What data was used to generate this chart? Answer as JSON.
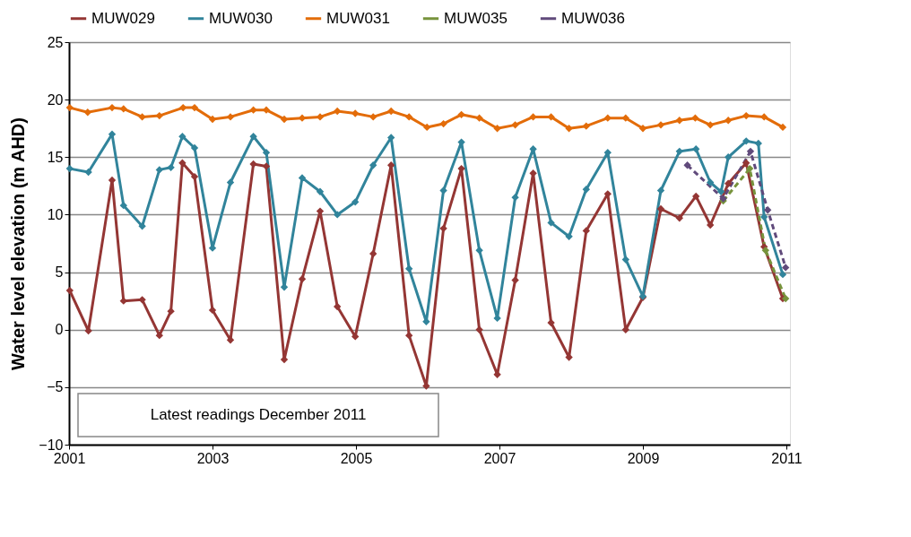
{
  "chart_data": {
    "type": "line",
    "ylabel": "Water level elevation  (m AHD)",
    "xlim": [
      2001,
      2011.05
    ],
    "xticks": [
      2001,
      2003,
      2005,
      2007,
      2009,
      2011
    ],
    "ylim": [
      -10,
      25
    ],
    "yticks": [
      -10,
      -5,
      0,
      5,
      10,
      15,
      20,
      25
    ],
    "grid": "y",
    "legend": "top",
    "marker": "diamond",
    "annotations": [
      "Latest readings December 2011"
    ],
    "series": [
      {
        "name": "MUW029",
        "color": "#943634",
        "line_style": "solid",
        "x": [
          2001.01,
          2001.27,
          2001.6,
          2001.76,
          2002.02,
          2002.26,
          2002.42,
          2002.58,
          2002.75,
          2003.0,
          2003.25,
          2003.57,
          2003.75,
          2004.0,
          2004.25,
          2004.5,
          2004.74,
          2004.99,
          2005.24,
          2005.49,
          2005.74,
          2005.98,
          2006.22,
          2006.47,
          2006.72,
          2006.97,
          2007.22,
          2007.47,
          2007.72,
          2007.97,
          2008.21,
          2008.51,
          2008.76,
          2009.0,
          2009.25,
          2009.51,
          2009.74,
          2009.94,
          2010.19,
          2010.44,
          2010.69,
          2010.95
        ],
        "values": [
          3.4,
          -0.1,
          13.0,
          2.5,
          2.6,
          -0.5,
          1.6,
          14.5,
          13.3,
          1.7,
          -0.9,
          14.4,
          14.2,
          -2.6,
          4.4,
          10.3,
          2.0,
          -0.6,
          6.6,
          14.3,
          -0.5,
          -4.9,
          8.8,
          14.0,
          0.0,
          -3.9,
          4.3,
          13.6,
          0.6,
          -2.4,
          8.6,
          11.8,
          0.0,
          2.8,
          10.5,
          9.7,
          11.6,
          9.1,
          12.7,
          14.5,
          7.2,
          2.7
        ]
      },
      {
        "name": "MUW030",
        "color": "#31849b",
        "line_style": "solid",
        "x": [
          2001.01,
          2001.27,
          2001.6,
          2001.76,
          2002.02,
          2002.26,
          2002.42,
          2002.58,
          2002.75,
          2003.0,
          2003.25,
          2003.57,
          2003.75,
          2004.0,
          2004.25,
          2004.5,
          2004.74,
          2004.99,
          2005.24,
          2005.49,
          2005.74,
          2005.98,
          2006.22,
          2006.47,
          2006.72,
          2006.97,
          2007.22,
          2007.47,
          2007.72,
          2007.97,
          2008.21,
          2008.51,
          2008.76,
          2009.0,
          2009.25,
          2009.51,
          2009.74,
          2009.94,
          2010.09,
          2010.19,
          2010.44,
          2010.61,
          2010.69,
          2010.95
        ],
        "values": [
          14.0,
          13.7,
          17.0,
          10.8,
          9.0,
          13.9,
          14.1,
          16.8,
          15.8,
          7.1,
          12.8,
          16.8,
          15.4,
          3.7,
          13.2,
          12.0,
          10.0,
          11.1,
          14.3,
          16.7,
          5.3,
          0.7,
          12.1,
          16.3,
          6.9,
          1.0,
          11.5,
          15.7,
          9.3,
          8.1,
          12.2,
          15.4,
          6.1,
          2.9,
          12.1,
          15.5,
          15.7,
          12.8,
          12.0,
          15.0,
          16.4,
          16.2,
          9.8,
          4.8
        ]
      },
      {
        "name": "MUW031",
        "color": "#e36c09",
        "line_style": "solid",
        "x": [
          2001.01,
          2001.26,
          2001.6,
          2001.76,
          2002.02,
          2002.26,
          2002.59,
          2002.75,
          2003.0,
          2003.25,
          2003.57,
          2003.75,
          2004.0,
          2004.25,
          2004.5,
          2004.74,
          2004.99,
          2005.24,
          2005.49,
          2005.74,
          2005.99,
          2006.22,
          2006.47,
          2006.72,
          2006.97,
          2007.22,
          2007.47,
          2007.72,
          2007.97,
          2008.21,
          2008.51,
          2008.76,
          2009.0,
          2009.25,
          2009.51,
          2009.73,
          2009.94,
          2010.19,
          2010.44,
          2010.69,
          2010.95
        ],
        "values": [
          19.3,
          18.9,
          19.3,
          19.2,
          18.5,
          18.6,
          19.3,
          19.3,
          18.3,
          18.5,
          19.1,
          19.1,
          18.3,
          18.4,
          18.5,
          19.0,
          18.8,
          18.5,
          19.0,
          18.5,
          17.6,
          17.9,
          18.7,
          18.4,
          17.5,
          17.8,
          18.5,
          18.5,
          17.5,
          17.7,
          18.4,
          18.4,
          17.5,
          17.8,
          18.2,
          18.4,
          17.8,
          18.2,
          18.6,
          18.5,
          17.6
        ]
      },
      {
        "name": "MUW035",
        "color": "#77933c",
        "line_style": "dashed",
        "x": [
          2010.12,
          2010.49,
          2010.71,
          2010.99
        ],
        "values": [
          11.2,
          14.0,
          6.9,
          2.7
        ]
      },
      {
        "name": "MUW036",
        "color": "#604a7b",
        "line_style": "dashed",
        "x": [
          2009.62,
          2010.12,
          2010.5,
          2010.74,
          2010.99
        ],
        "values": [
          14.3,
          11.4,
          15.5,
          10.4,
          5.4
        ]
      }
    ]
  }
}
